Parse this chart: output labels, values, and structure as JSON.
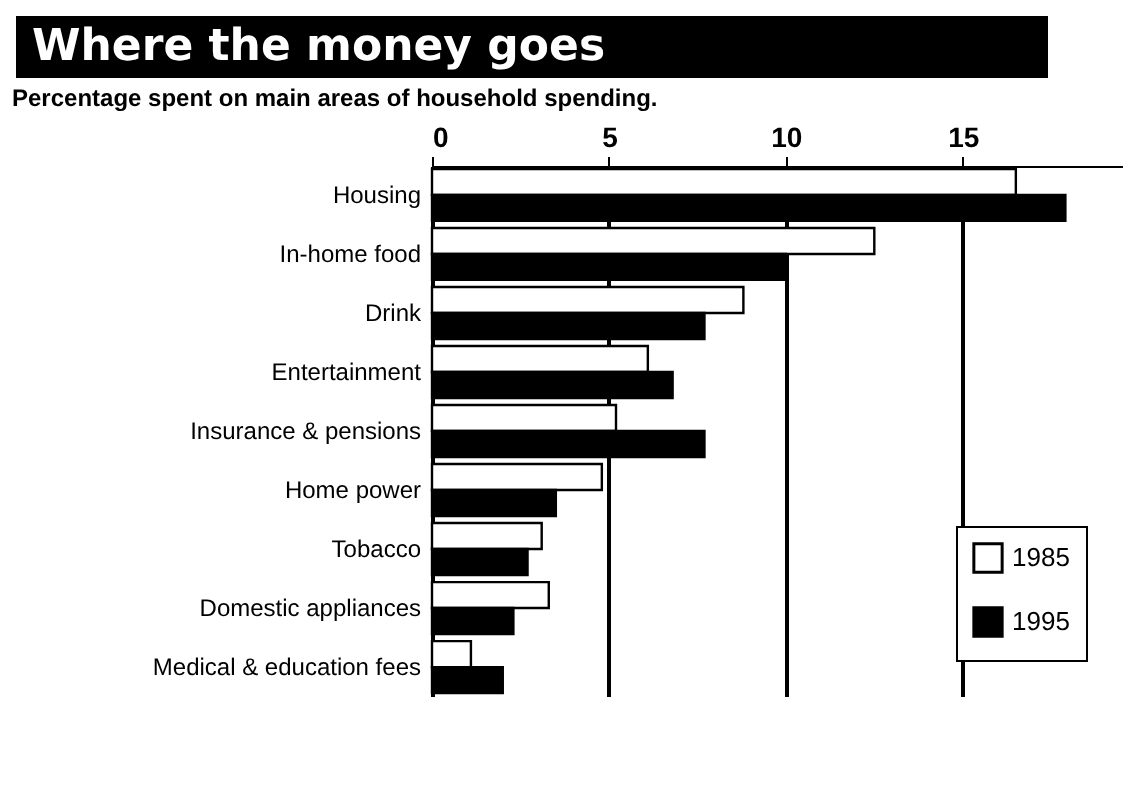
{
  "chart_data": {
    "type": "bar",
    "orientation": "horizontal",
    "title": "Where the money goes",
    "subtitle": "Percentage spent on main areas of household spending.",
    "categories": [
      "Housing",
      "In-home food",
      "Drink",
      "Entertainment",
      "Insurance & pensions",
      "Home power",
      "Tobacco",
      "Domestic appliances",
      "Medical & education fees"
    ],
    "series": [
      {
        "name": "1985",
        "color": "#ffffff",
        "values": [
          16.5,
          12.5,
          8.8,
          6.1,
          5.2,
          4.8,
          3.1,
          3.3,
          1.1
        ]
      },
      {
        "name": "1995",
        "color": "#000000",
        "values": [
          17.9,
          10.0,
          7.7,
          6.8,
          7.7,
          3.5,
          2.7,
          2.3,
          2.0
        ]
      }
    ],
    "xlim": [
      0,
      19.5
    ],
    "xticks": [
      0,
      5,
      10,
      15
    ],
    "grid": "x",
    "legend": "bottom right"
  }
}
